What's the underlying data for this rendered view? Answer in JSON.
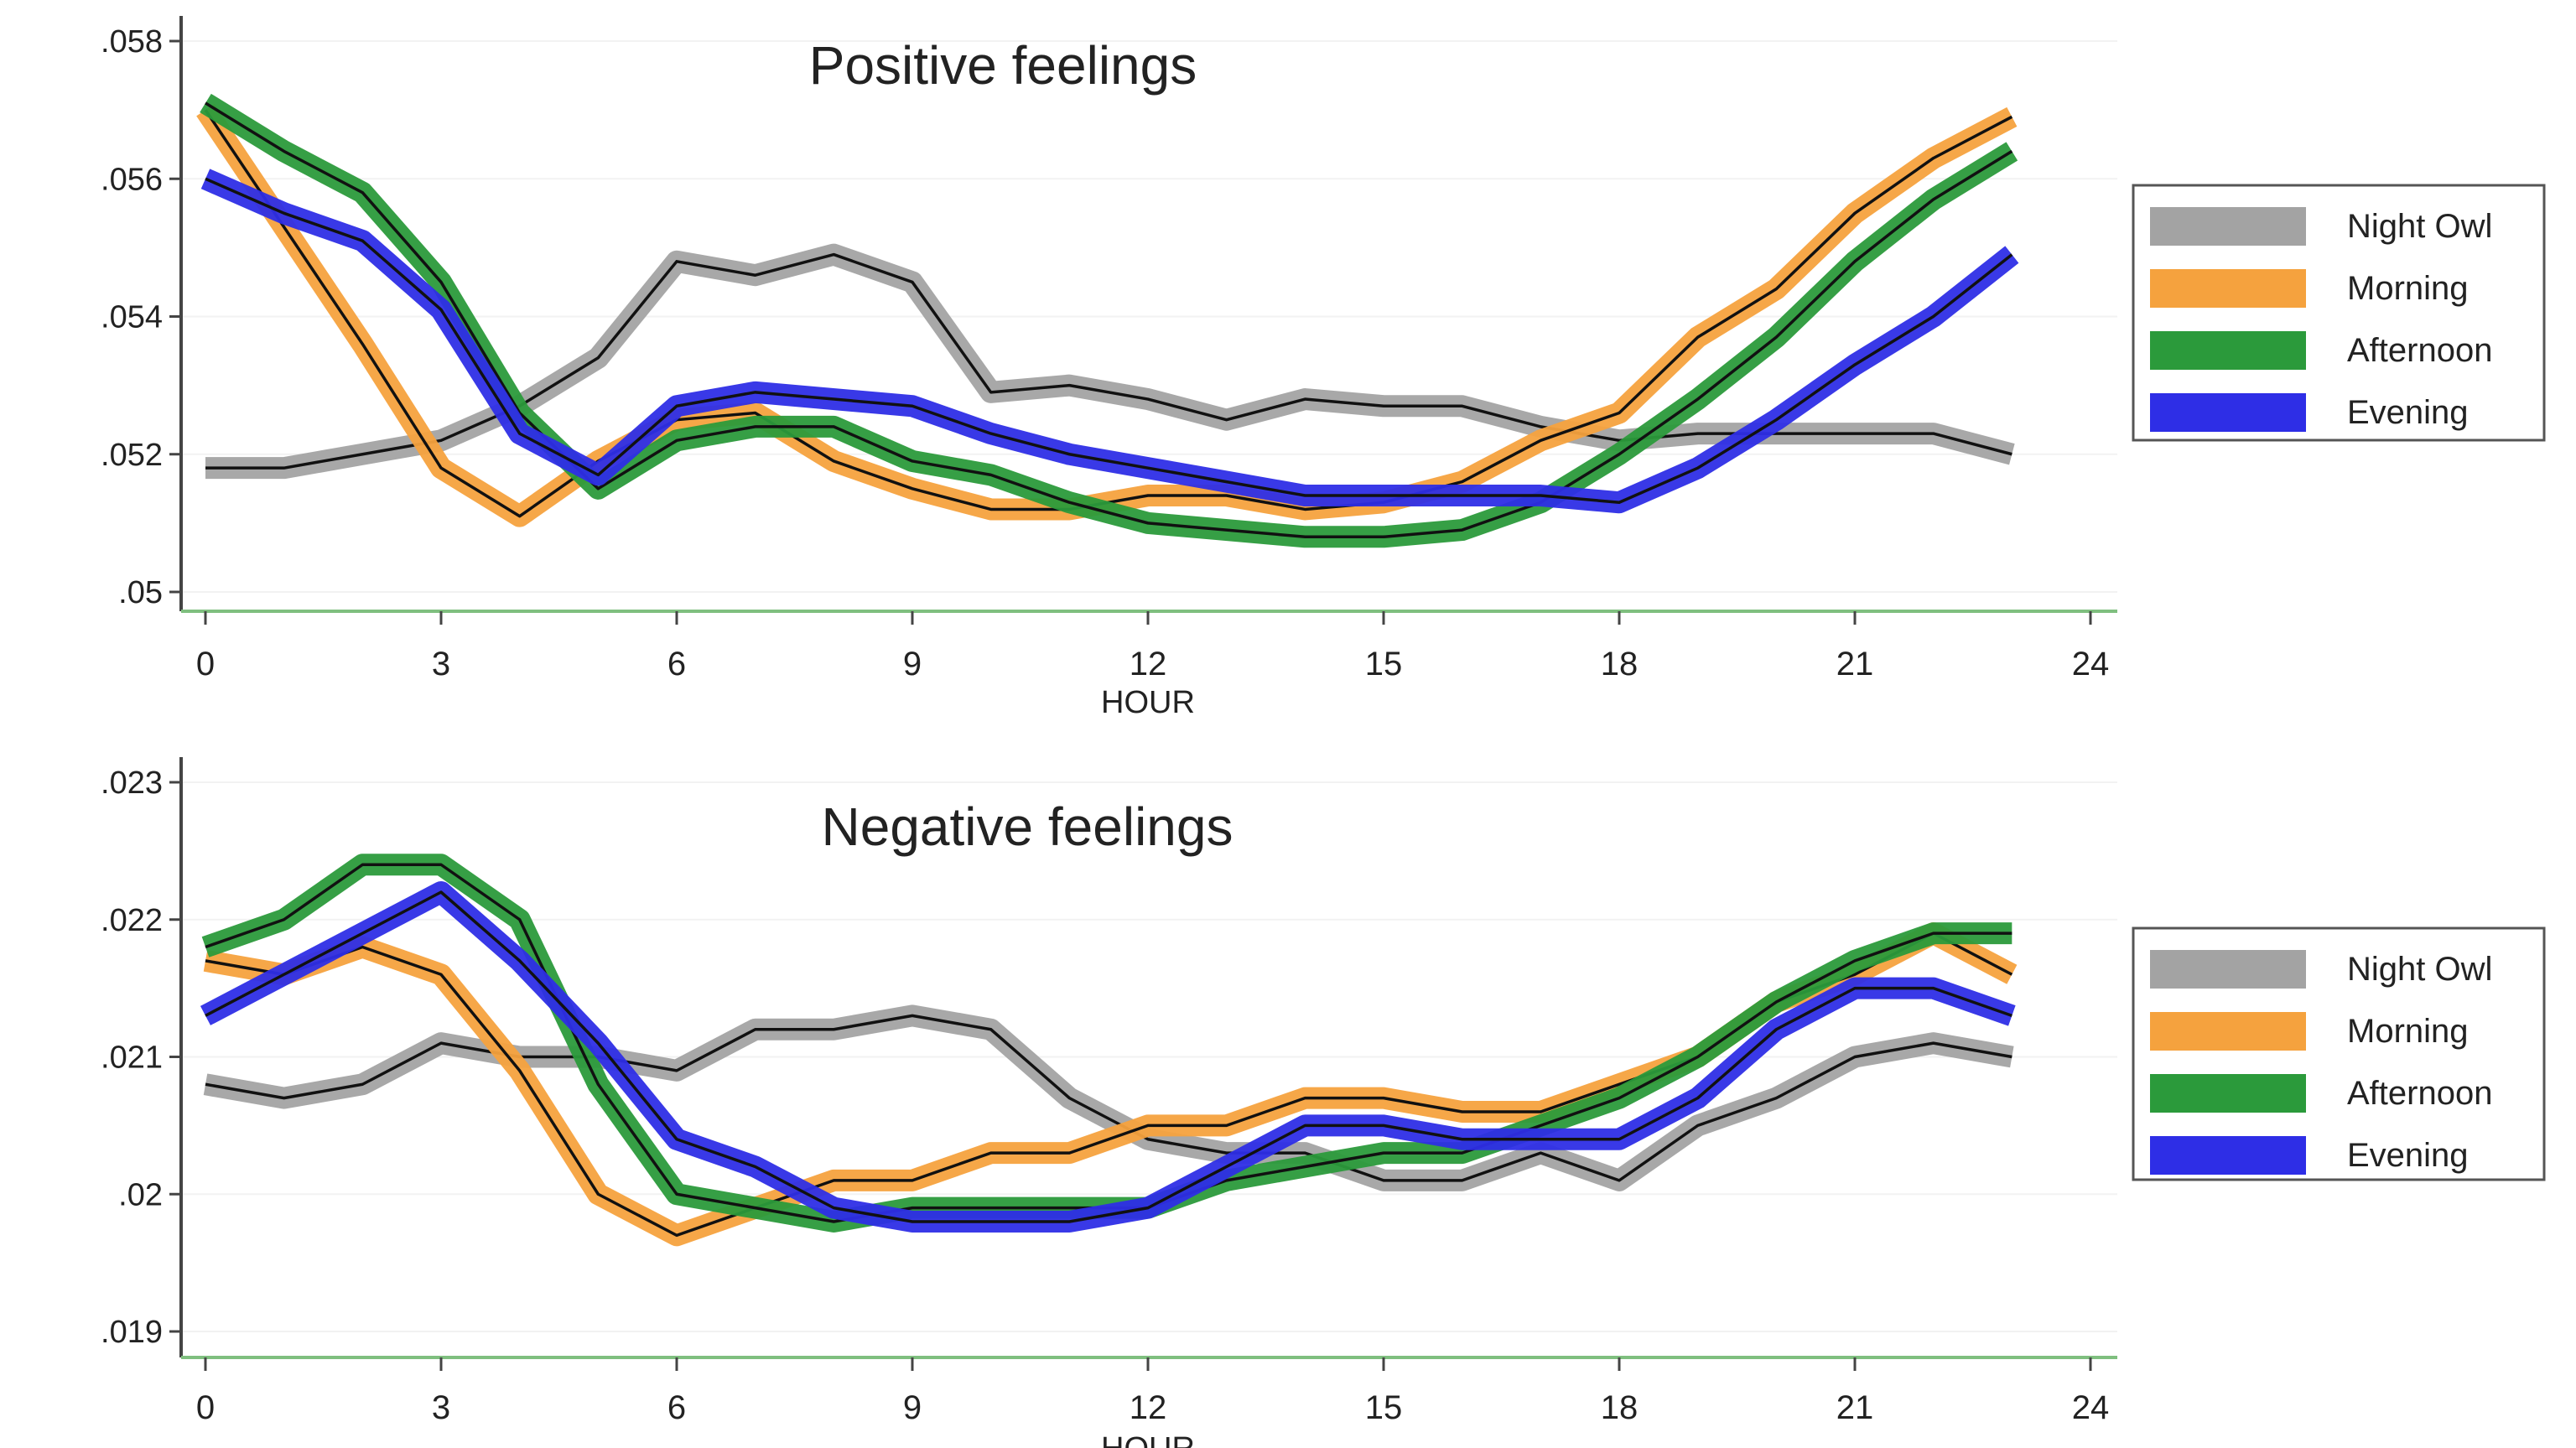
{
  "chart_data": [
    {
      "type": "line",
      "title": "Positive feelings",
      "xlabel": "HOUR",
      "ylabel": "",
      "xlim": [
        0,
        24
      ],
      "ylim": [
        0.05,
        0.058
      ],
      "xticks": [
        "0",
        "3",
        "6",
        "9",
        "12",
        "15",
        "18",
        "21",
        "24"
      ],
      "yticks": [
        ".05",
        ".052",
        ".054",
        ".056",
        ".058"
      ],
      "legend_position": "right",
      "x": [
        0,
        1,
        2,
        3,
        4,
        5,
        6,
        7,
        8,
        9,
        10,
        11,
        12,
        13,
        14,
        15,
        16,
        17,
        18,
        19,
        20,
        21,
        22,
        23
      ],
      "series": [
        {
          "name": "Night Owl",
          "color": "#a3a3a3",
          "values": [
            0.0518,
            0.0518,
            0.052,
            0.0522,
            0.0527,
            0.0534,
            0.0548,
            0.0546,
            0.0549,
            0.0545,
            0.0529,
            0.053,
            0.0528,
            0.0525,
            0.0528,
            0.0527,
            0.0527,
            0.0524,
            0.0522,
            0.0523,
            0.0523,
            0.0523,
            0.0523,
            0.052
          ]
        },
        {
          "name": "Morning",
          "color": "#f5a23e",
          "values": [
            0.057,
            0.0553,
            0.0536,
            0.0518,
            0.0511,
            0.0519,
            0.0525,
            0.0526,
            0.0519,
            0.0515,
            0.0512,
            0.0512,
            0.0514,
            0.0514,
            0.0512,
            0.0513,
            0.0516,
            0.0522,
            0.0526,
            0.0537,
            0.0544,
            0.0555,
            0.0563,
            0.0569
          ]
        },
        {
          "name": "Afternoon",
          "color": "#2b9a3b",
          "values": [
            0.0571,
            0.0564,
            0.0558,
            0.0545,
            0.0526,
            0.0515,
            0.0522,
            0.0524,
            0.0524,
            0.0519,
            0.0517,
            0.0513,
            0.051,
            0.0509,
            0.0508,
            0.0508,
            0.0509,
            0.0513,
            0.052,
            0.0528,
            0.0537,
            0.0548,
            0.0557,
            0.0564
          ]
        },
        {
          "name": "Evening",
          "color": "#2e2ee6",
          "values": [
            0.056,
            0.0555,
            0.0551,
            0.0541,
            0.0523,
            0.0517,
            0.0527,
            0.0529,
            0.0528,
            0.0527,
            0.0523,
            0.052,
            0.0518,
            0.0516,
            0.0514,
            0.0514,
            0.0514,
            0.0514,
            0.0513,
            0.0518,
            0.0525,
            0.0533,
            0.054,
            0.0549
          ]
        }
      ]
    },
    {
      "type": "line",
      "title": "Negative feelings",
      "xlabel": "HOUR",
      "ylabel": "",
      "xlim": [
        0,
        24
      ],
      "ylim": [
        0.019,
        0.023
      ],
      "xticks": [
        "0",
        "3",
        "6",
        "9",
        "12",
        "15",
        "18",
        "21",
        "24"
      ],
      "yticks": [
        ".019",
        ".02",
        ".021",
        ".022",
        ".023"
      ],
      "legend_position": "right",
      "x": [
        0,
        1,
        2,
        3,
        4,
        5,
        6,
        7,
        8,
        9,
        10,
        11,
        12,
        13,
        14,
        15,
        16,
        17,
        18,
        19,
        20,
        21,
        22,
        23
      ],
      "series": [
        {
          "name": "Night Owl",
          "color": "#a3a3a3",
          "values": [
            0.0208,
            0.0207,
            0.0208,
            0.0211,
            0.021,
            0.021,
            0.0209,
            0.0212,
            0.0212,
            0.0213,
            0.0212,
            0.0207,
            0.0204,
            0.0203,
            0.0203,
            0.0201,
            0.0201,
            0.0203,
            0.0201,
            0.0205,
            0.0207,
            0.021,
            0.0211,
            0.021
          ]
        },
        {
          "name": "Morning",
          "color": "#f5a23e",
          "values": [
            0.0217,
            0.0216,
            0.0218,
            0.0216,
            0.0209,
            0.02,
            0.0197,
            0.0199,
            0.0201,
            0.0201,
            0.0203,
            0.0203,
            0.0205,
            0.0205,
            0.0207,
            0.0207,
            0.0206,
            0.0206,
            0.0208,
            0.021,
            0.0214,
            0.0216,
            0.0219,
            0.0216
          ]
        },
        {
          "name": "Afternoon",
          "color": "#2b9a3b",
          "values": [
            0.0218,
            0.022,
            0.0224,
            0.0224,
            0.022,
            0.0208,
            0.02,
            0.0199,
            0.0198,
            0.0199,
            0.0199,
            0.0199,
            0.0199,
            0.0201,
            0.0202,
            0.0203,
            0.0203,
            0.0205,
            0.0207,
            0.021,
            0.0214,
            0.0217,
            0.0219,
            0.0219
          ]
        },
        {
          "name": "Evening",
          "color": "#2e2ee6",
          "values": [
            0.0213,
            0.0216,
            0.0219,
            0.0222,
            0.0217,
            0.0211,
            0.0204,
            0.0202,
            0.0199,
            0.0198,
            0.0198,
            0.0198,
            0.0199,
            0.0202,
            0.0205,
            0.0205,
            0.0204,
            0.0204,
            0.0204,
            0.0207,
            0.0212,
            0.0215,
            0.0215,
            0.0213
          ]
        }
      ]
    }
  ]
}
